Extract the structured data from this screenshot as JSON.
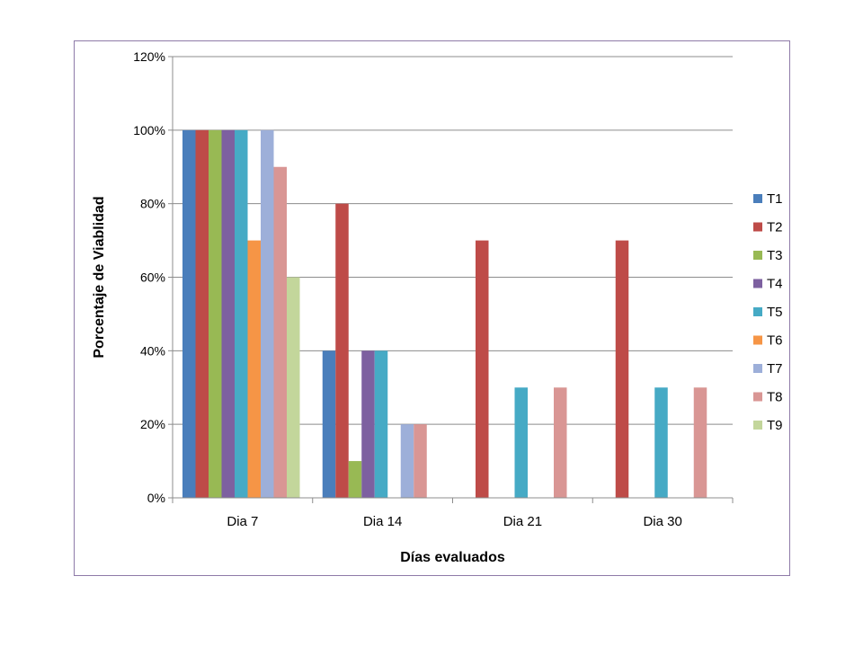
{
  "chart_data": {
    "type": "bar",
    "title": "",
    "xlabel": "Días evaluados",
    "ylabel": "Porcentaje de Viablidad",
    "ylim": [
      0,
      120
    ],
    "yticks": [
      "0%",
      "20%",
      "40%",
      "60%",
      "80%",
      "100%",
      "120%"
    ],
    "ytick_values": [
      0,
      20,
      40,
      60,
      80,
      100,
      120
    ],
    "grid": true,
    "legend_position": "right",
    "categories": [
      "Dia 7",
      "Dia 14",
      "Dia 21",
      "Dia 30"
    ],
    "series": [
      {
        "name": "T1",
        "color": "#4a7ebb",
        "values": [
          100,
          40,
          0,
          0
        ]
      },
      {
        "name": "T2",
        "color": "#be4b48",
        "values": [
          100,
          80,
          70,
          70
        ]
      },
      {
        "name": "T3",
        "color": "#98b954",
        "values": [
          100,
          10,
          0,
          0
        ]
      },
      {
        "name": "T4",
        "color": "#7d60a0",
        "values": [
          100,
          40,
          0,
          0
        ]
      },
      {
        "name": "T5",
        "color": "#46aac5",
        "values": [
          100,
          40,
          30,
          30
        ]
      },
      {
        "name": "T6",
        "color": "#f69546",
        "values": [
          70,
          0,
          0,
          0
        ]
      },
      {
        "name": "T7",
        "color": "#9dafd9",
        "values": [
          100,
          20,
          0,
          0
        ]
      },
      {
        "name": "T8",
        "color": "#d99694",
        "values": [
          90,
          20,
          30,
          30
        ]
      },
      {
        "name": "T9",
        "color": "#c3d69b",
        "values": [
          60,
          0,
          0,
          0
        ]
      }
    ]
  }
}
